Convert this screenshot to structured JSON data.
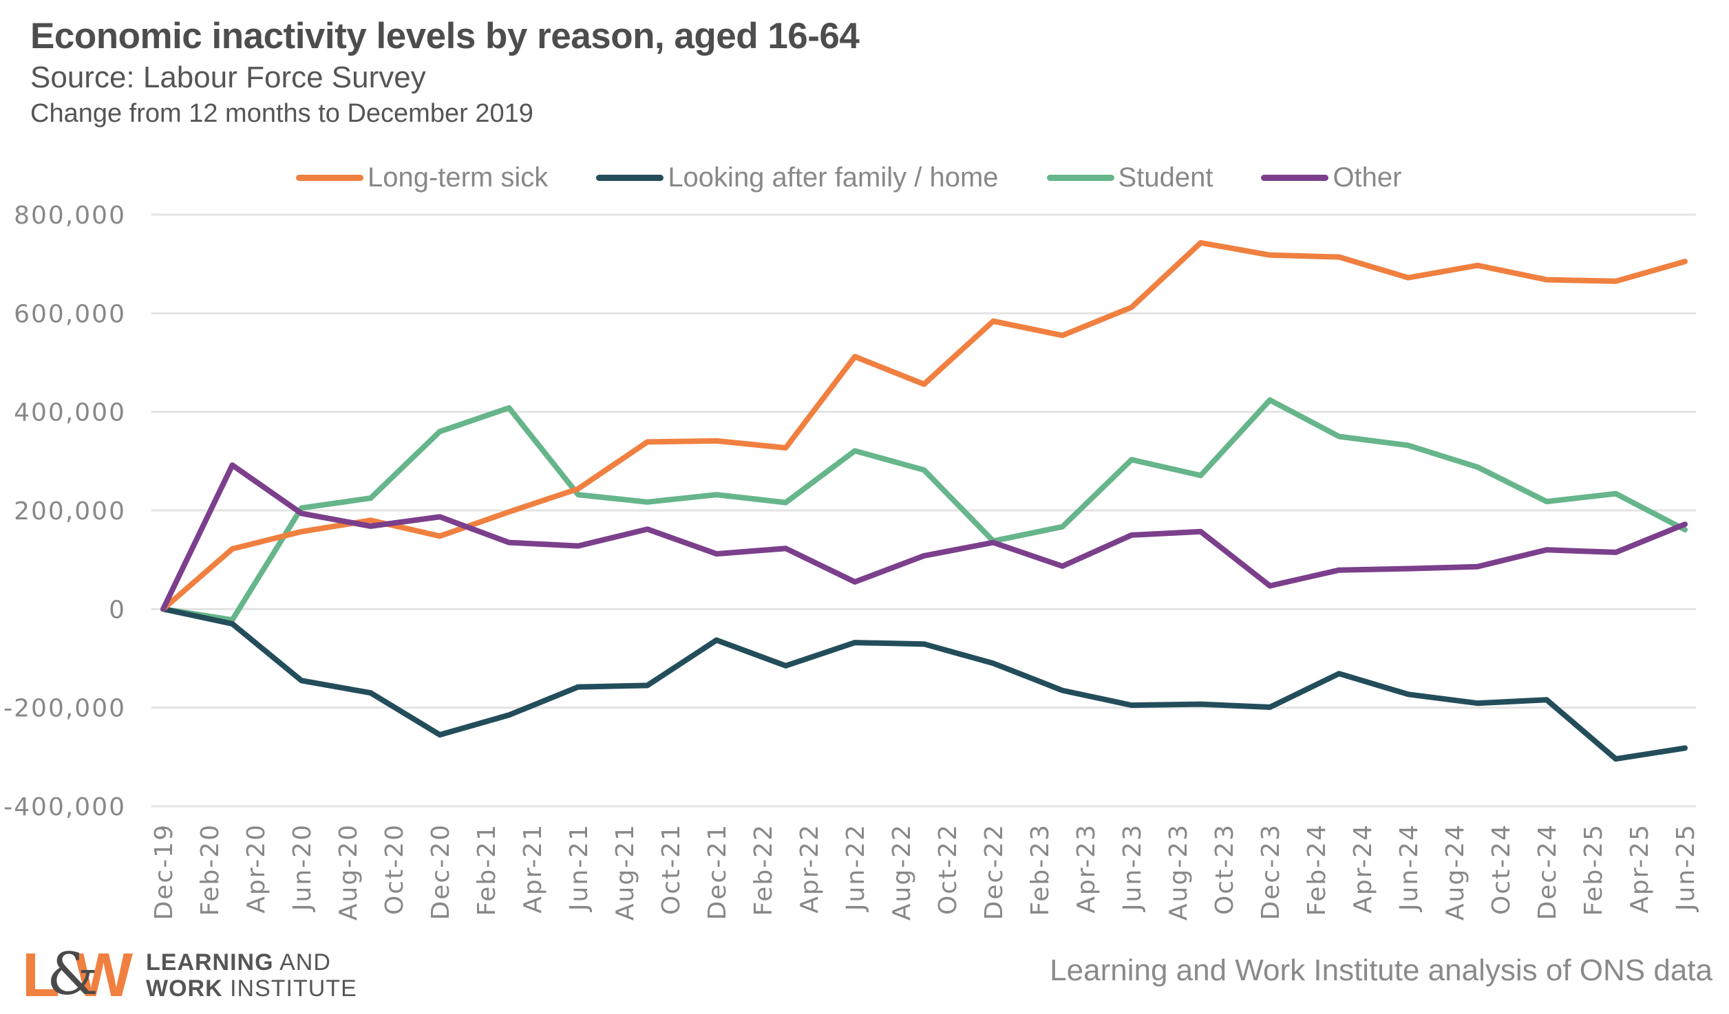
{
  "header": {
    "title": "Economic inactivity levels by reason, aged 16-64",
    "subtitle": "Source: Labour Force Survey",
    "note": "Change from 12 months to December 2019"
  },
  "footer": {
    "attribution": "Learning and Work Institute analysis of ONS data",
    "logo_mark": {
      "l": "L",
      "amp": "&",
      "w": "W"
    },
    "logo_line1_bold": "LEARNING",
    "logo_line1_rest": " AND",
    "logo_line2_bold": "WORK",
    "logo_line2_rest": " INSTITUTE"
  },
  "colors": {
    "long_term_sick": "#f08040",
    "looking_after_family": "#234d5a",
    "student": "#66b58b",
    "other": "#7b3f8c",
    "gridline": "#e3e3e3",
    "axis_text": "#888888"
  },
  "chart_data": {
    "type": "line",
    "title": "Economic inactivity levels by reason, aged 16-64",
    "xlabel": "",
    "ylabel": "",
    "ylim": [
      -400000,
      800000
    ],
    "yticks": [
      800000,
      600000,
      400000,
      200000,
      0,
      -200000,
      -400000
    ],
    "ytick_labels": [
      "800,000",
      "600,000",
      "400,000",
      "200,000",
      "0",
      "-200,000",
      "-400,000"
    ],
    "xtick_labels": [
      "Dec-19",
      "Feb-20",
      "Apr-20",
      "Jun-20",
      "Aug-20",
      "Oct-20",
      "Dec-20",
      "Feb-21",
      "Apr-21",
      "Jun-21",
      "Aug-21",
      "Oct-21",
      "Dec-21",
      "Feb-22",
      "Apr-22",
      "Jun-22",
      "Aug-22",
      "Oct-22",
      "Dec-22",
      "Feb-23",
      "Apr-23",
      "Jun-23",
      "Aug-23",
      "Oct-23",
      "Dec-23",
      "Feb-24",
      "Apr-24",
      "Jun-24",
      "Aug-24",
      "Oct-24",
      "Dec-24",
      "Feb-25",
      "Apr-25",
      "Jun-25"
    ],
    "x_months_from_start_of_ticks": 2,
    "x": [
      "Dec-19",
      "Mar-20",
      "Jun-20",
      "Sep-20",
      "Dec-20",
      "Mar-21",
      "Jun-21",
      "Sep-21",
      "Dec-21",
      "Mar-22",
      "Jun-22",
      "Sep-22",
      "Dec-22",
      "Mar-23",
      "Jun-23",
      "Sep-23",
      "Dec-23",
      "Mar-24",
      "Jun-24",
      "Sep-24",
      "Dec-24",
      "Mar-25",
      "Jun-25"
    ],
    "grid": true,
    "legend": "top",
    "series": [
      {
        "key": "long_term_sick",
        "name": "Long-term sick",
        "values": [
          0,
          122000,
          157000,
          180000,
          148000,
          197000,
          244000,
          339000,
          341000,
          327000,
          512000,
          456000,
          584000,
          555000,
          612000,
          743000,
          718000,
          714000,
          672000,
          697000,
          668000,
          665000,
          705000
        ]
      },
      {
        "key": "looking_after_family",
        "name": "Looking after family / home",
        "values": [
          0,
          -30000,
          -145000,
          -170000,
          -255000,
          -215000,
          -158000,
          -155000,
          -63000,
          -115000,
          -68000,
          -71000,
          -110000,
          -165000,
          -195000,
          -193000,
          -199000,
          -131000,
          -173000,
          -191000,
          -184000,
          -304000,
          -282000
        ]
      },
      {
        "key": "student",
        "name": "Student",
        "values": [
          0,
          -22000,
          205000,
          225000,
          360000,
          408000,
          232000,
          217000,
          232000,
          216000,
          321000,
          282000,
          138000,
          167000,
          303000,
          271000,
          424000,
          350000,
          332000,
          288000,
          218000,
          234000,
          161000
        ]
      },
      {
        "key": "other",
        "name": "Other",
        "values": [
          0,
          292000,
          194000,
          168000,
          187000,
          135000,
          128000,
          162000,
          112000,
          123000,
          55000,
          108000,
          135000,
          87000,
          150000,
          157000,
          47000,
          79000,
          82000,
          86000,
          120000,
          115000,
          172000
        ]
      }
    ]
  }
}
